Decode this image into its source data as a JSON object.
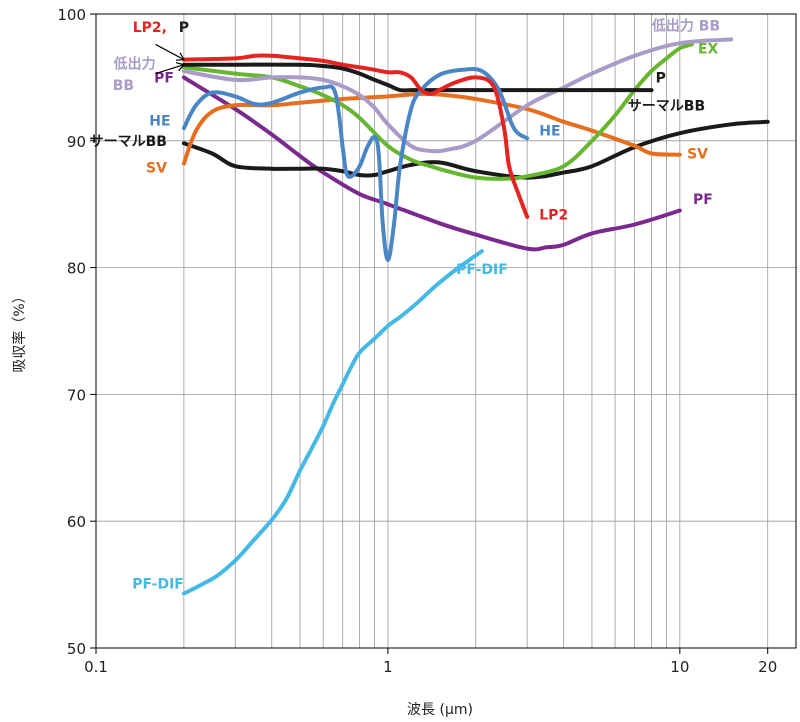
{
  "chart_data": {
    "type": "line",
    "xlabel": "波長 (μm)",
    "ylabel": "吸収率（%）",
    "x_scale": "log",
    "xlim": [
      0.1,
      25
    ],
    "ylim": [
      50,
      100
    ],
    "x_ticks": [
      0.1,
      1,
      10,
      20
    ],
    "x_tick_labels": [
      "0.1",
      "1",
      "10",
      "20"
    ],
    "y_ticks": [
      50,
      60,
      70,
      80,
      90,
      100
    ],
    "y_tick_labels": [
      "50",
      "60",
      "70",
      "80",
      "90",
      "100"
    ],
    "grid": "on (log minor verticals)",
    "series": [
      {
        "name": "PF-DIF",
        "color": "#45B9E6",
        "labels": [
          {
            "text": "PF-DIF",
            "x": 0.2,
            "y": 54.7,
            "anchor": "end"
          },
          {
            "text": "PF-DIF",
            "x": 2.1,
            "y": 79.5,
            "anchor": "middle"
          }
        ],
        "x": [
          0.2,
          0.23,
          0.26,
          0.3,
          0.35,
          0.4,
          0.45,
          0.5,
          0.55,
          0.6,
          0.65,
          0.7,
          0.75,
          0.8,
          0.9,
          1.0,
          1.1,
          1.2,
          1.3,
          1.4,
          1.5,
          1.7,
          1.9,
          2.1
        ],
        "y": [
          54.3,
          55.0,
          55.7,
          56.9,
          58.6,
          60.1,
          61.8,
          64.0,
          65.8,
          67.5,
          69.3,
          70.8,
          72.2,
          73.3,
          74.4,
          75.4,
          76.1,
          76.8,
          77.5,
          78.2,
          78.8,
          79.8,
          80.6,
          81.3
        ]
      },
      {
        "name": "PF",
        "color": "#7A2A8E",
        "labels": [
          {
            "text": "PF",
            "x": 0.185,
            "y": 94.6,
            "anchor": "end"
          },
          {
            "text": "PF",
            "x": 12.0,
            "y": 85.0,
            "anchor": "middle"
          }
        ],
        "x": [
          0.2,
          0.3,
          0.4,
          0.5,
          0.6,
          0.8,
          1.0,
          1.5,
          2.0,
          3.0,
          3.5,
          4.0,
          5.0,
          7.0,
          10.0
        ],
        "y": [
          95.0,
          92.5,
          90.5,
          88.8,
          87.5,
          85.8,
          85.0,
          83.5,
          82.6,
          81.5,
          81.6,
          81.8,
          82.7,
          83.4,
          84.5
        ]
      },
      {
        "name": "サーマルBB (lower)",
        "color": "#1A1A1A",
        "labels": [
          {
            "text": "サーマルBB",
            "x": 0.175,
            "y": 89.6,
            "anchor": "end"
          }
        ],
        "x": [
          0.2,
          0.25,
          0.3,
          0.4,
          0.5,
          0.6,
          0.7,
          0.8,
          0.9,
          1.0,
          1.2,
          1.5,
          2.0,
          3.0,
          4.0,
          5.0,
          7.0,
          10.0,
          15.0,
          20.0
        ],
        "y": [
          89.8,
          89.0,
          88.0,
          87.8,
          87.8,
          87.8,
          87.6,
          87.3,
          87.3,
          87.6,
          88.1,
          88.3,
          87.6,
          87.1,
          87.5,
          88.0,
          89.5,
          90.6,
          91.3,
          91.5
        ]
      },
      {
        "name": "SV",
        "color": "#E56E1F",
        "labels": [
          {
            "text": "SV",
            "x": 0.175,
            "y": 87.5,
            "anchor": "end"
          },
          {
            "text": "SV",
            "x": 11.5,
            "y": 88.6,
            "anchor": "middle"
          }
        ],
        "x": [
          0.2,
          0.22,
          0.25,
          0.3,
          0.4,
          0.5,
          0.7,
          1.0,
          1.3,
          1.6,
          2.0,
          3.0,
          4.0,
          5.0,
          7.0,
          8.0,
          10.0
        ],
        "y": [
          88.2,
          90.8,
          92.3,
          92.8,
          92.8,
          93.0,
          93.3,
          93.5,
          93.7,
          93.6,
          93.3,
          92.5,
          91.5,
          90.8,
          89.6,
          89.0,
          88.9
        ]
      },
      {
        "name": "EX",
        "color": "#67B531",
        "labels": [
          {
            "text": "EX",
            "x": 12.5,
            "y": 96.9,
            "anchor": "middle"
          }
        ],
        "x": [
          0.2,
          0.3,
          0.4,
          0.5,
          0.6,
          0.7,
          0.8,
          1.0,
          1.2,
          1.4,
          1.6,
          2.0,
          2.5,
          3.0,
          4.0,
          5.0,
          6.0,
          7.0,
          8.0,
          9.0,
          10.0,
          11.0
        ],
        "y": [
          95.8,
          95.3,
          95.0,
          94.3,
          93.6,
          92.8,
          91.8,
          89.6,
          88.5,
          88.0,
          87.6,
          87.1,
          87.0,
          87.2,
          88.0,
          90.0,
          92.0,
          94.0,
          95.5,
          96.5,
          97.3,
          97.6
        ]
      },
      {
        "name": "低出力BB",
        "color": "#A89BC8",
        "labels": [
          {
            "text": "低出力",
            "x": 0.16,
            "y": 95.7,
            "anchor": "end"
          },
          {
            "text": "BB",
            "x": 0.135,
            "y": 94.0,
            "anchor": "end"
          },
          {
            "text": "低出力 BB",
            "x": 10.5,
            "y": 98.7,
            "anchor": "middle"
          }
        ],
        "x": [
          0.2,
          0.3,
          0.4,
          0.5,
          0.6,
          0.7,
          0.8,
          0.9,
          1.0,
          1.2,
          1.4,
          1.6,
          2.0,
          3.0,
          4.0,
          5.0,
          7.0,
          10.0,
          15.0
        ],
        "y": [
          95.5,
          94.8,
          95.0,
          95.0,
          94.8,
          94.3,
          93.6,
          92.6,
          91.3,
          89.6,
          89.2,
          89.3,
          90.0,
          92.8,
          94.2,
          95.3,
          96.7,
          97.7,
          98.0
        ]
      },
      {
        "name": "P",
        "color": "#1A1A1A",
        "labels": [
          {
            "text": "P",
            "x": 8.6,
            "y": 94.6,
            "anchor": "middle"
          },
          {
            "text": "サーマルBB",
            "x": 9.0,
            "y": 92.4,
            "anchor": "middle"
          }
        ],
        "x": [
          0.2,
          0.3,
          0.5,
          0.6,
          0.7,
          0.8,
          0.9,
          1.0,
          1.1,
          1.2,
          1.5,
          2.0,
          3.0,
          5.0,
          8.0
        ],
        "y": [
          96.0,
          96.0,
          96.0,
          95.9,
          95.7,
          95.3,
          94.8,
          94.4,
          94.0,
          94.0,
          94.0,
          94.0,
          94.0,
          94.0,
          94.0
        ]
      },
      {
        "name": "HE",
        "color": "#4A86C5",
        "labels": [
          {
            "text": "HE",
            "x": 0.18,
            "y": 91.2,
            "anchor": "end"
          },
          {
            "text": "HE",
            "x": 3.3,
            "y": 90.4,
            "anchor": "start"
          }
        ],
        "x": [
          0.2,
          0.22,
          0.25,
          0.3,
          0.35,
          0.4,
          0.5,
          0.6,
          0.66,
          0.7,
          0.72,
          0.75,
          0.8,
          0.85,
          0.9,
          0.93,
          0.96,
          1.0,
          1.05,
          1.1,
          1.2,
          1.3,
          1.5,
          1.8,
          2.1,
          2.4,
          2.7,
          3.0
        ],
        "y": [
          91.0,
          92.8,
          93.8,
          93.5,
          92.9,
          93.0,
          93.8,
          94.2,
          93.8,
          89.5,
          87.5,
          87.2,
          88.0,
          89.5,
          90.3,
          89.0,
          83.5,
          80.6,
          83.5,
          88.0,
          92.5,
          94.0,
          95.2,
          95.6,
          95.5,
          94.0,
          91.0,
          90.2
        ]
      },
      {
        "name": "LP2",
        "color": "#E52421",
        "labels": [
          {
            "text": "LP2,",
            "x": 0.175,
            "y": 98.6,
            "anchor": "end"
          },
          {
            "text": "LP2",
            "x": 3.3,
            "y": 83.8,
            "anchor": "start"
          }
        ],
        "x": [
          0.2,
          0.3,
          0.35,
          0.4,
          0.5,
          0.6,
          0.7,
          0.8,
          0.9,
          1.0,
          1.1,
          1.2,
          1.3,
          1.4,
          1.5,
          1.7,
          2.0,
          2.3,
          2.5,
          2.6,
          2.8,
          3.0
        ],
        "y": [
          96.4,
          96.5,
          96.7,
          96.7,
          96.5,
          96.3,
          96.0,
          95.8,
          95.6,
          95.4,
          95.4,
          95.0,
          94.0,
          93.7,
          94.0,
          94.6,
          95.0,
          94.3,
          91.0,
          88.0,
          85.8,
          84.0
        ]
      }
    ],
    "annotations": [
      {
        "text": "P",
        "x": 0.2,
        "y": 98.6
      },
      {
        "text": "arrow",
        "from": [
          0.16,
          97.6
        ],
        "to": [
          0.2,
          96.4
        ]
      },
      {
        "text": "arrow",
        "from": [
          0.16,
          95.3
        ],
        "to": [
          0.2,
          96.0
        ]
      }
    ]
  }
}
